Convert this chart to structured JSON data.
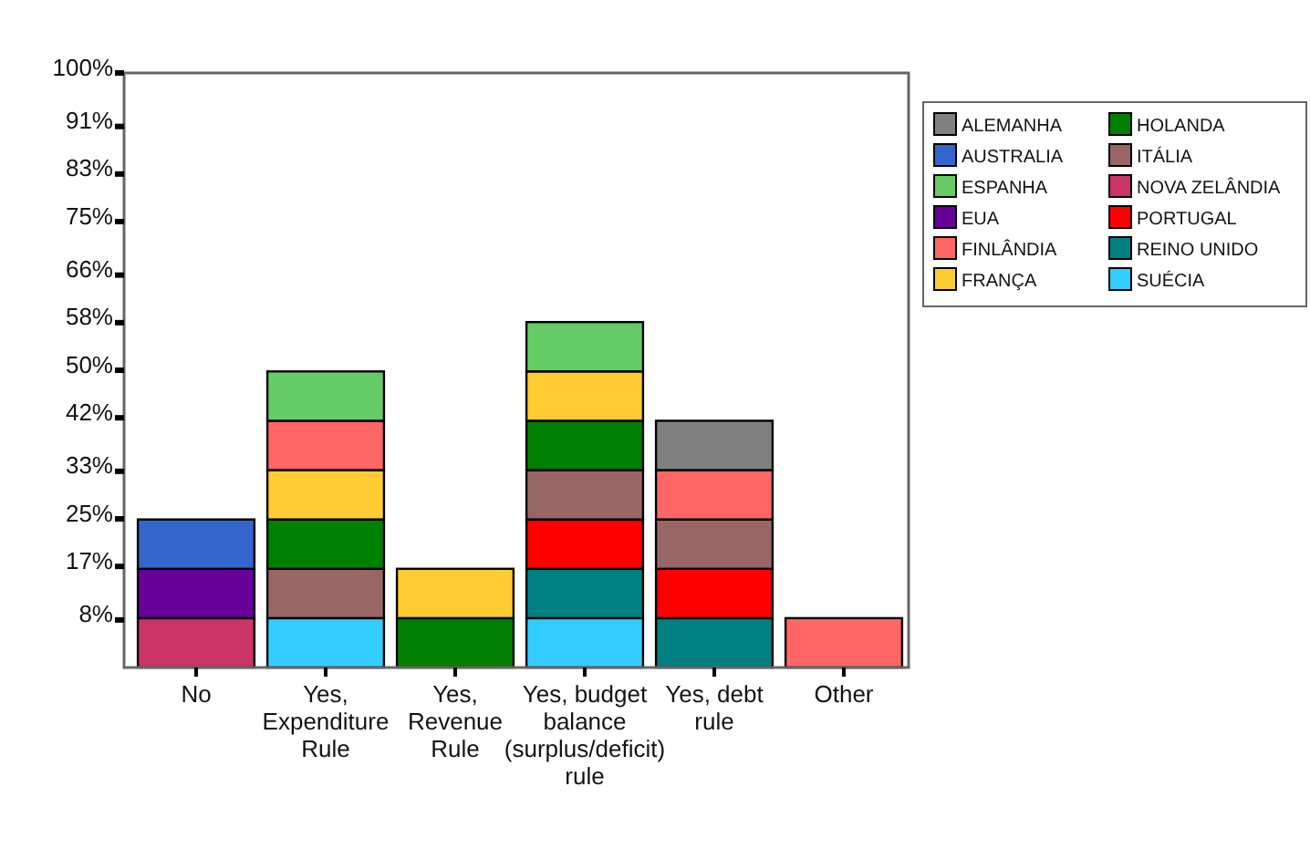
{
  "chart_data": {
    "type": "bar",
    "stacked": true,
    "legend": "top right",
    "grid": false,
    "categories": [
      "No",
      "Yes, Expenditure Rule",
      "Yes, Revenue Rule",
      "Yes, budget balance (surplus/deficit) rule",
      "Yes, debt rule",
      "Other"
    ],
    "ylim": [
      0,
      100
    ],
    "yticks": [
      {
        "value": 8,
        "label": "8%"
      },
      {
        "value": 17,
        "label": "17%"
      },
      {
        "value": 25,
        "label": "25%"
      },
      {
        "value": 33,
        "label": "33%"
      },
      {
        "value": 42,
        "label": "42%"
      },
      {
        "value": 50,
        "label": "50%"
      },
      {
        "value": 58,
        "label": "58%"
      },
      {
        "value": 66,
        "label": "66%"
      },
      {
        "value": 75,
        "label": "75%"
      },
      {
        "value": 83,
        "label": "83%"
      },
      {
        "value": 91,
        "label": "91%"
      },
      {
        "value": 100,
        "label": "100%"
      }
    ],
    "series": [
      {
        "name": "NOVA ZELÂNDIA",
        "color": "#cc3366",
        "values": [
          8.3,
          null,
          null,
          null,
          null,
          null
        ]
      },
      {
        "name": "EUA",
        "color": "#660099",
        "values": [
          8.3,
          null,
          null,
          null,
          null,
          null
        ]
      },
      {
        "name": "AUSTRALIA",
        "color": "#3366cc",
        "values": [
          8.3,
          null,
          null,
          null,
          null,
          null
        ]
      },
      {
        "name": "SUÉCIA",
        "color": "#33ccff",
        "values": [
          null,
          8.3,
          null,
          8.3,
          null,
          null
        ]
      },
      {
        "name": "REINO UNIDO",
        "color": "#008080",
        "values": [
          null,
          null,
          null,
          8.3,
          8.3,
          null
        ]
      },
      {
        "name": "PORTUGAL",
        "color": "#ff0000",
        "values": [
          null,
          null,
          null,
          8.3,
          8.3,
          null
        ]
      },
      {
        "name": "ITÁLIA",
        "color": "#996666",
        "values": [
          null,
          8.3,
          null,
          8.3,
          8.3,
          null
        ]
      },
      {
        "name": "HOLANDA",
        "color": "#008000",
        "values": [
          null,
          8.3,
          8.3,
          8.3,
          null,
          null
        ]
      },
      {
        "name": "FRANÇA",
        "color": "#ffcc33",
        "values": [
          null,
          8.3,
          8.3,
          8.3,
          null,
          null
        ]
      },
      {
        "name": "FINLÂNDIA",
        "color": "#ff6666",
        "values": [
          null,
          8.3,
          null,
          null,
          8.3,
          8.3
        ]
      },
      {
        "name": "ESPANHA",
        "color": "#66cc66",
        "values": [
          null,
          8.3,
          null,
          8.3,
          null,
          null
        ]
      },
      {
        "name": "ALEMANHA",
        "color": "#808080",
        "values": [
          null,
          null,
          null,
          null,
          8.3,
          null
        ]
      }
    ]
  }
}
